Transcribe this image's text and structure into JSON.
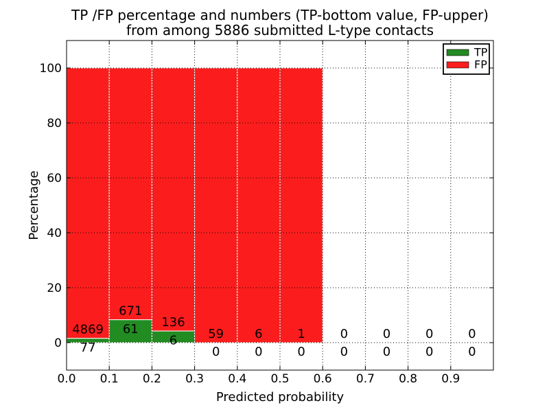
{
  "chart_data": {
    "type": "bar",
    "stacked": true,
    "title_line1": "TP /FP percentage and numbers (TP-bottom value, FP-upper)",
    "title_line2": "from among 5886 submitted L-type contacts",
    "xlabel": "Predicted probability",
    "ylabel": "Percentage",
    "total_submitted": 5886,
    "xlim": [
      0.0,
      1.0
    ],
    "ylim": [
      -10,
      110
    ],
    "x_ticks": [
      "0.0",
      "0.1",
      "0.2",
      "0.3",
      "0.4",
      "0.5",
      "0.6",
      "0.7",
      "0.8",
      "0.9"
    ],
    "x_tick_values": [
      0.0,
      0.1,
      0.2,
      0.3,
      0.4,
      0.5,
      0.6,
      0.7,
      0.8,
      0.9
    ],
    "y_ticks": [
      "0",
      "20",
      "40",
      "60",
      "80",
      "100"
    ],
    "y_tick_values": [
      0,
      20,
      40,
      60,
      80,
      100
    ],
    "grid": true,
    "grid_style": "dotted",
    "legend": [
      {
        "label": "TP",
        "color": "#228B22"
      },
      {
        "label": "FP",
        "color": "#FB1D1D"
      }
    ],
    "legend_position": "upper right",
    "bins": [
      {
        "x_start": 0.0,
        "x_end": 0.1,
        "tp": 77,
        "fp": 4869
      },
      {
        "x_start": 0.1,
        "x_end": 0.2,
        "tp": 61,
        "fp": 671
      },
      {
        "x_start": 0.2,
        "x_end": 0.3,
        "tp": 6,
        "fp": 136
      },
      {
        "x_start": 0.3,
        "x_end": 0.4,
        "tp": 0,
        "fp": 59
      },
      {
        "x_start": 0.4,
        "x_end": 0.5,
        "tp": 0,
        "fp": 6
      },
      {
        "x_start": 0.5,
        "x_end": 0.6,
        "tp": 0,
        "fp": 1
      },
      {
        "x_start": 0.6,
        "x_end": 0.7,
        "tp": 0,
        "fp": 0
      },
      {
        "x_start": 0.7,
        "x_end": 0.8,
        "tp": 0,
        "fp": 0
      },
      {
        "x_start": 0.8,
        "x_end": 0.9,
        "tp": 0,
        "fp": 0
      },
      {
        "x_start": 0.9,
        "x_end": 1.0,
        "tp": 0,
        "fp": 0
      }
    ],
    "bar_value_semantics": "bar height = count / (tp+fp) * 100 per bin; red stacked above green to 100%",
    "colors": {
      "tp": "#228B22",
      "fp": "#FB1D1D",
      "bar_edge": "#FFFFFF",
      "grid": "#000000",
      "axis": "#000000",
      "text": "#000000",
      "background": "#FFFFFF"
    }
  }
}
